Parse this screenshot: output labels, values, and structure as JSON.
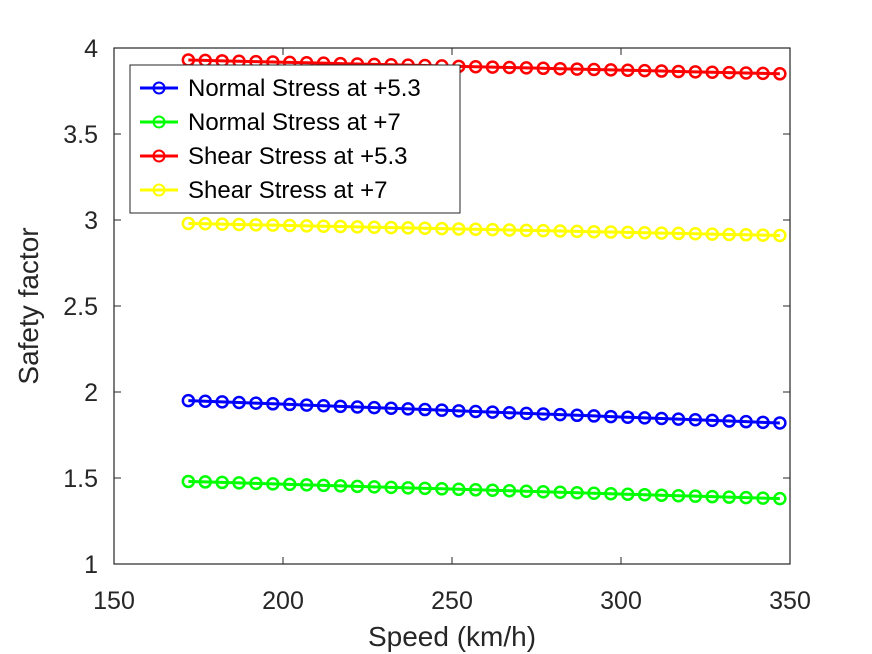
{
  "chart_data": {
    "type": "line",
    "title": "",
    "xlabel": "Speed (km/h)",
    "ylabel": "Safety factor",
    "xlim": [
      150,
      350
    ],
    "ylim": [
      1,
      4
    ],
    "xticks": [
      150,
      200,
      250,
      300,
      350
    ],
    "yticks": [
      1,
      1.5,
      2,
      2.5,
      3,
      3.5,
      4
    ],
    "grid": false,
    "legend_position": "top-left",
    "x_start": 172,
    "x_end": 347,
    "x_step": 5,
    "series": [
      {
        "name": "Normal Stress at +5.3",
        "color": "#0000ff",
        "y_start": 1.95,
        "y_end": 1.82
      },
      {
        "name": "Normal Stress at +7",
        "color": "#00ff00",
        "y_start": 1.48,
        "y_end": 1.38
      },
      {
        "name": "Shear Stress at +5.3",
        "color": "#ff0000",
        "y_start": 3.93,
        "y_end": 3.85
      },
      {
        "name": "Shear Stress at +7",
        "color": "#ffff00",
        "y_start": 2.98,
        "y_end": 2.91
      }
    ]
  }
}
